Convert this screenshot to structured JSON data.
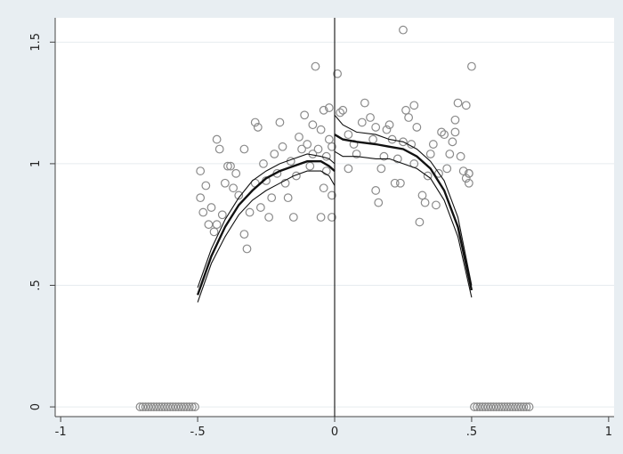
{
  "chart_data": {
    "type": "scatter",
    "title": "",
    "xlabel": "",
    "ylabel": "",
    "xlim": [
      -1.02,
      1.02
    ],
    "ylim": [
      -0.04,
      1.6
    ],
    "grid": true,
    "x_ticks": [
      {
        "value": -1,
        "label": "-1"
      },
      {
        "value": -0.5,
        "label": "-.5"
      },
      {
        "value": 0,
        "label": "0"
      },
      {
        "value": 0.5,
        "label": ".5"
      },
      {
        "value": 1,
        "label": "1"
      }
    ],
    "y_ticks": [
      {
        "value": 0,
        "label": "0"
      },
      {
        "value": 0.5,
        "label": ".5"
      },
      {
        "value": 1,
        "label": "1"
      },
      {
        "value": 1.5,
        "label": "1.5"
      }
    ],
    "cutoff_x": 0,
    "scatter_points": [
      [
        -0.71,
        0
      ],
      [
        -0.7,
        0
      ],
      [
        -0.69,
        0
      ],
      [
        -0.68,
        0
      ],
      [
        -0.67,
        0
      ],
      [
        -0.66,
        0
      ],
      [
        -0.65,
        0
      ],
      [
        -0.64,
        0
      ],
      [
        -0.63,
        0
      ],
      [
        -0.62,
        0
      ],
      [
        -0.61,
        0
      ],
      [
        -0.6,
        0
      ],
      [
        -0.59,
        0
      ],
      [
        -0.58,
        0
      ],
      [
        -0.57,
        0
      ],
      [
        -0.56,
        0
      ],
      [
        -0.55,
        0
      ],
      [
        -0.54,
        0
      ],
      [
        -0.53,
        0
      ],
      [
        -0.52,
        0
      ],
      [
        -0.51,
        0
      ],
      [
        0.51,
        0
      ],
      [
        0.52,
        0
      ],
      [
        0.53,
        0
      ],
      [
        0.54,
        0
      ],
      [
        0.55,
        0
      ],
      [
        0.56,
        0
      ],
      [
        0.57,
        0
      ],
      [
        0.58,
        0
      ],
      [
        0.59,
        0
      ],
      [
        0.6,
        0
      ],
      [
        0.61,
        0
      ],
      [
        0.62,
        0
      ],
      [
        0.63,
        0
      ],
      [
        0.64,
        0
      ],
      [
        0.65,
        0
      ],
      [
        0.66,
        0
      ],
      [
        0.67,
        0
      ],
      [
        0.68,
        0
      ],
      [
        0.69,
        0
      ],
      [
        0.7,
        0
      ],
      [
        0.71,
        0
      ],
      [
        -0.49,
        0.97
      ],
      [
        -0.49,
        0.86
      ],
      [
        -0.47,
        0.91
      ],
      [
        -0.48,
        0.8
      ],
      [
        -0.46,
        0.75
      ],
      [
        -0.45,
        0.82
      ],
      [
        -0.44,
        0.72
      ],
      [
        -0.43,
        0.75
      ],
      [
        -0.42,
        1.06
      ],
      [
        -0.43,
        1.1
      ],
      [
        -0.41,
        0.79
      ],
      [
        -0.4,
        0.92
      ],
      [
        -0.39,
        0.99
      ],
      [
        -0.38,
        0.99
      ],
      [
        -0.37,
        0.9
      ],
      [
        -0.36,
        0.96
      ],
      [
        -0.35,
        0.87
      ],
      [
        -0.33,
        1.06
      ],
      [
        -0.33,
        0.71
      ],
      [
        -0.32,
        0.65
      ],
      [
        -0.31,
        0.8
      ],
      [
        -0.29,
        1.17
      ],
      [
        -0.28,
        1.15
      ],
      [
        -0.29,
        0.92
      ],
      [
        -0.27,
        0.82
      ],
      [
        -0.26,
        1.0
      ],
      [
        -0.25,
        0.93
      ],
      [
        -0.24,
        0.78
      ],
      [
        -0.23,
        0.86
      ],
      [
        -0.22,
        1.04
      ],
      [
        -0.21,
        0.96
      ],
      [
        -0.2,
        1.17
      ],
      [
        -0.19,
        1.07
      ],
      [
        -0.18,
        0.92
      ],
      [
        -0.17,
        0.86
      ],
      [
        -0.16,
        1.01
      ],
      [
        -0.15,
        0.78
      ],
      [
        -0.14,
        0.95
      ],
      [
        -0.13,
        1.11
      ],
      [
        -0.12,
        1.06
      ],
      [
        -0.11,
        1.2
      ],
      [
        -0.1,
        1.08
      ],
      [
        -0.09,
        0.99
      ],
      [
        -0.08,
        1.04
      ],
      [
        -0.07,
        1.4
      ],
      [
        -0.06,
        1.06
      ],
      [
        -0.05,
        1.14
      ],
      [
        -0.04,
        0.9
      ],
      [
        -0.04,
        1.22
      ],
      [
        -0.03,
        0.97
      ],
      [
        -0.02,
        1.1
      ],
      [
        -0.01,
        1.07
      ],
      [
        -0.01,
        0.87
      ],
      [
        -0.05,
        0.78
      ],
      [
        -0.08,
        1.16
      ],
      [
        -0.03,
        1.03
      ],
      [
        -0.01,
        0.78
      ],
      [
        -0.02,
        1.23
      ],
      [
        0.01,
        1.37
      ],
      [
        0.02,
        1.21
      ],
      [
        0.03,
        1.22
      ],
      [
        0.05,
        0.98
      ],
      [
        0.05,
        1.12
      ],
      [
        0.07,
        1.08
      ],
      [
        0.08,
        1.04
      ],
      [
        0.1,
        1.17
      ],
      [
        0.11,
        1.25
      ],
      [
        0.13,
        1.19
      ],
      [
        0.14,
        1.1
      ],
      [
        0.15,
        1.15
      ],
      [
        0.15,
        0.89
      ],
      [
        0.16,
        0.84
      ],
      [
        0.17,
        0.98
      ],
      [
        0.18,
        1.03
      ],
      [
        0.19,
        1.14
      ],
      [
        0.2,
        1.16
      ],
      [
        0.21,
        1.1
      ],
      [
        0.22,
        0.92
      ],
      [
        0.23,
        1.02
      ],
      [
        0.24,
        0.92
      ],
      [
        0.25,
        1.09
      ],
      [
        0.26,
        1.22
      ],
      [
        0.27,
        1.19
      ],
      [
        0.28,
        1.08
      ],
      [
        0.29,
        1.0
      ],
      [
        0.3,
        1.15
      ],
      [
        0.31,
        0.76
      ],
      [
        0.32,
        0.87
      ],
      [
        0.33,
        0.84
      ],
      [
        0.34,
        0.95
      ],
      [
        0.35,
        1.04
      ],
      [
        0.36,
        1.08
      ],
      [
        0.37,
        0.83
      ],
      [
        0.38,
        0.96
      ],
      [
        0.39,
        1.13
      ],
      [
        0.4,
        1.12
      ],
      [
        0.41,
        0.98
      ],
      [
        0.42,
        1.04
      ],
      [
        0.43,
        1.09
      ],
      [
        0.44,
        1.13
      ],
      [
        0.45,
        1.25
      ],
      [
        0.46,
        1.03
      ],
      [
        0.47,
        0.97
      ],
      [
        0.48,
        0.94
      ],
      [
        0.49,
        0.96
      ],
      [
        0.49,
        0.92
      ],
      [
        0.49,
        0.96
      ],
      [
        0.5,
        1.4
      ],
      [
        0.48,
        1.24
      ],
      [
        0.25,
        1.55
      ],
      [
        0.29,
        1.24
      ],
      [
        0.44,
        1.18
      ]
    ],
    "fit_left": [
      [
        -0.5,
        0.46
      ],
      [
        -0.45,
        0.62
      ],
      [
        -0.4,
        0.74
      ],
      [
        -0.35,
        0.83
      ],
      [
        -0.3,
        0.89
      ],
      [
        -0.25,
        0.94
      ],
      [
        -0.2,
        0.97
      ],
      [
        -0.15,
        0.99
      ],
      [
        -0.1,
        1.01
      ],
      [
        -0.05,
        1.01
      ],
      [
        -0.02,
        0.99
      ],
      [
        0,
        0.97
      ]
    ],
    "ci_left_upper": [
      [
        -0.5,
        0.49
      ],
      [
        -0.45,
        0.65
      ],
      [
        -0.4,
        0.77
      ],
      [
        -0.35,
        0.86
      ],
      [
        -0.3,
        0.93
      ],
      [
        -0.25,
        0.97
      ],
      [
        -0.2,
        1.0
      ],
      [
        -0.15,
        1.02
      ],
      [
        -0.1,
        1.04
      ],
      [
        -0.05,
        1.03
      ],
      [
        -0.02,
        1.02
      ],
      [
        0,
        1.0
      ]
    ],
    "ci_left_lower": [
      [
        -0.5,
        0.43
      ],
      [
        -0.45,
        0.59
      ],
      [
        -0.4,
        0.7
      ],
      [
        -0.35,
        0.79
      ],
      [
        -0.3,
        0.85
      ],
      [
        -0.25,
        0.89
      ],
      [
        -0.2,
        0.92
      ],
      [
        -0.15,
        0.95
      ],
      [
        -0.1,
        0.97
      ],
      [
        -0.05,
        0.97
      ],
      [
        -0.02,
        0.95
      ],
      [
        0,
        0.91
      ]
    ],
    "fit_right": [
      [
        0,
        1.12
      ],
      [
        0.03,
        1.1
      ],
      [
        0.08,
        1.09
      ],
      [
        0.15,
        1.08
      ],
      [
        0.2,
        1.07
      ],
      [
        0.25,
        1.06
      ],
      [
        0.3,
        1.03
      ],
      [
        0.35,
        0.98
      ],
      [
        0.4,
        0.89
      ],
      [
        0.45,
        0.74
      ],
      [
        0.5,
        0.48
      ]
    ],
    "ci_right_upper": [
      [
        0,
        1.2
      ],
      [
        0.03,
        1.16
      ],
      [
        0.08,
        1.13
      ],
      [
        0.15,
        1.12
      ],
      [
        0.2,
        1.1
      ],
      [
        0.25,
        1.09
      ],
      [
        0.3,
        1.06
      ],
      [
        0.35,
        1.01
      ],
      [
        0.4,
        0.93
      ],
      [
        0.45,
        0.78
      ],
      [
        0.5,
        0.5
      ]
    ],
    "ci_right_lower": [
      [
        0,
        1.05
      ],
      [
        0.03,
        1.03
      ],
      [
        0.08,
        1.03
      ],
      [
        0.15,
        1.02
      ],
      [
        0.2,
        1.02
      ],
      [
        0.25,
        1.0
      ],
      [
        0.3,
        0.98
      ],
      [
        0.35,
        0.94
      ],
      [
        0.4,
        0.85
      ],
      [
        0.45,
        0.7
      ],
      [
        0.5,
        0.45
      ]
    ]
  }
}
